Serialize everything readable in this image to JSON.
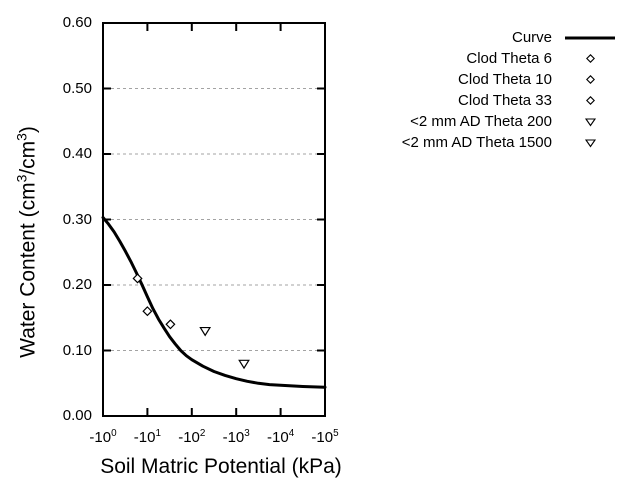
{
  "figure": {
    "background": "#ffffff",
    "text_color": "#000000"
  },
  "chart_data": {
    "type": "line",
    "title": "",
    "xlabel": "Soil Matric Potential (kPa)",
    "ylabel": "Water Content (cm^3/cm^3)",
    "x_scale": "negative log10 axis in kPa, decades 0 to 5",
    "xlim_decades": [
      0,
      5
    ],
    "ylim": [
      0.0,
      0.6
    ],
    "x_ticks": [
      {
        "decade": 0,
        "label": "-10^0"
      },
      {
        "decade": 1,
        "label": "-10^1"
      },
      {
        "decade": 2,
        "label": "-10^2"
      },
      {
        "decade": 3,
        "label": "-10^3"
      },
      {
        "decade": 4,
        "label": "-10^4"
      },
      {
        "decade": 5,
        "label": "-10^5"
      }
    ],
    "y_ticks": [
      {
        "value": 0.0,
        "label": "0.00"
      },
      {
        "value": 0.1,
        "label": "0.10"
      },
      {
        "value": 0.2,
        "label": "0.20"
      },
      {
        "value": 0.3,
        "label": "0.30"
      },
      {
        "value": 0.4,
        "label": "0.40"
      },
      {
        "value": 0.5,
        "label": "0.50"
      },
      {
        "value": 0.6,
        "label": "0.60"
      }
    ],
    "grid": {
      "style": "dashed",
      "color": "#a3a3a3",
      "at": [
        0.1,
        0.2,
        0.3,
        0.4,
        0.5
      ]
    },
    "curve": {
      "name": "Curve",
      "color": "#000000",
      "width": 3,
      "points_log10kpa_theta": [
        [
          0,
          0.303
        ],
        [
          0.125,
          0.293
        ],
        [
          0.25,
          0.281
        ],
        [
          0.375,
          0.267
        ],
        [
          0.5,
          0.252
        ],
        [
          0.625,
          0.236
        ],
        [
          0.75,
          0.219
        ],
        [
          0.875,
          0.201
        ],
        [
          1,
          0.182
        ],
        [
          1.125,
          0.164
        ],
        [
          1.25,
          0.148
        ],
        [
          1.375,
          0.134
        ],
        [
          1.5,
          0.121
        ],
        [
          1.625,
          0.11
        ],
        [
          1.75,
          0.1
        ],
        [
          1.875,
          0.092
        ],
        [
          2,
          0.086
        ],
        [
          2.25,
          0.076
        ],
        [
          2.5,
          0.068
        ],
        [
          2.75,
          0.062
        ],
        [
          3,
          0.057
        ],
        [
          3.25,
          0.053
        ],
        [
          3.5,
          0.05
        ],
        [
          3.75,
          0.048
        ],
        [
          4,
          0.047
        ],
        [
          4.25,
          0.046
        ],
        [
          4.5,
          0.045
        ],
        [
          4.75,
          0.0445
        ],
        [
          5,
          0.044
        ]
      ]
    },
    "scatter_series": [
      {
        "name": "Clod Theta 6",
        "marker": "diamond",
        "points": [
          {
            "kpa": -6,
            "theta": 0.21
          }
        ]
      },
      {
        "name": "Clod Theta 10",
        "marker": "diamond",
        "points": [
          {
            "kpa": -10,
            "theta": 0.16
          }
        ]
      },
      {
        "name": "Clod Theta 33",
        "marker": "diamond",
        "points": [
          {
            "kpa": -33,
            "theta": 0.14
          }
        ]
      },
      {
        "name": "<2 mm AD Theta 200",
        "marker": "triangle-down",
        "points": [
          {
            "kpa": -200,
            "theta": 0.13
          }
        ]
      },
      {
        "name": "<2 mm AD Theta 1500",
        "marker": "triangle-down",
        "points": [
          {
            "kpa": -1500,
            "theta": 0.08
          }
        ]
      }
    ],
    "legend": {
      "position": "outside-top-right",
      "entries": [
        {
          "label": "Curve",
          "marker": "line"
        },
        {
          "label": "Clod Theta 6",
          "marker": "diamond"
        },
        {
          "label": "Clod Theta 10",
          "marker": "diamond"
        },
        {
          "label": "Clod Theta 33",
          "marker": "diamond"
        },
        {
          "label": "<2 mm AD Theta 200",
          "marker": "triangle-down"
        },
        {
          "label": "<2 mm AD Theta 1500",
          "marker": "triangle-down"
        }
      ]
    }
  }
}
